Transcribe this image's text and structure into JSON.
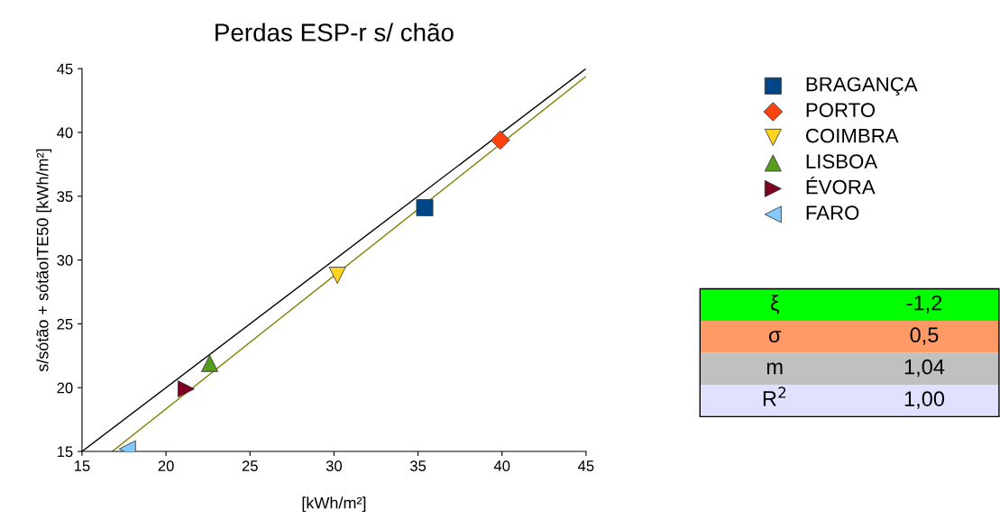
{
  "chart_data": {
    "type": "scatter",
    "title": "Perdas ESP-r s/ chão",
    "xlabel": "[kWh/m²]",
    "ylabel": "s/sótão + sótãoITE50 [kWh/m²]",
    "xlim": [
      15,
      45
    ],
    "ylim": [
      15,
      45
    ],
    "xticks": [
      15,
      20,
      25,
      30,
      35,
      40,
      45
    ],
    "yticks": [
      15,
      20,
      25,
      30,
      35,
      40,
      45
    ],
    "grid": false,
    "legend": "top right",
    "series": [
      {
        "name": "BRAGANÇA",
        "color": "#004586",
        "marker": "square",
        "x": [
          35.4
        ],
        "values": [
          34.1
        ]
      },
      {
        "name": "PORTO",
        "color": "#ff420e",
        "marker": "diamond",
        "x": [
          39.9
        ],
        "values": [
          39.4
        ]
      },
      {
        "name": "COIMBRA",
        "color": "#ffd320",
        "marker": "triangle_down",
        "x": [
          30.2
        ],
        "values": [
          28.8
        ]
      },
      {
        "name": "LISBOA",
        "color": "#579d1c",
        "marker": "triangle",
        "x": [
          22.6
        ],
        "values": [
          21.9
        ]
      },
      {
        "name": "ÉVORA",
        "color": "#7e0021",
        "marker": "triangle_right",
        "x": [
          21.2
        ],
        "values": [
          19.9
        ]
      },
      {
        "name": "FARO",
        "color": "#83caff",
        "marker": "triangle_left",
        "x": [
          17.7
        ],
        "values": [
          15.2
        ]
      },
      {
        "type": "line",
        "color": "#000000",
        "marker": "none",
        "line_style": "solid",
        "x": [
          15,
          45
        ],
        "values": [
          15,
          45
        ]
      },
      {
        "type": "line",
        "color": "#808000",
        "marker": "none",
        "line_style": "solid",
        "x": [
          16.8,
          45
        ],
        "values": [
          15,
          44.4
        ]
      }
    ],
    "annotations": [
      "ξ",
      "-1,2",
      "σ",
      "0,5",
      "m",
      "1,04",
      "R$^{2}$",
      "1,00"
    ]
  }
}
